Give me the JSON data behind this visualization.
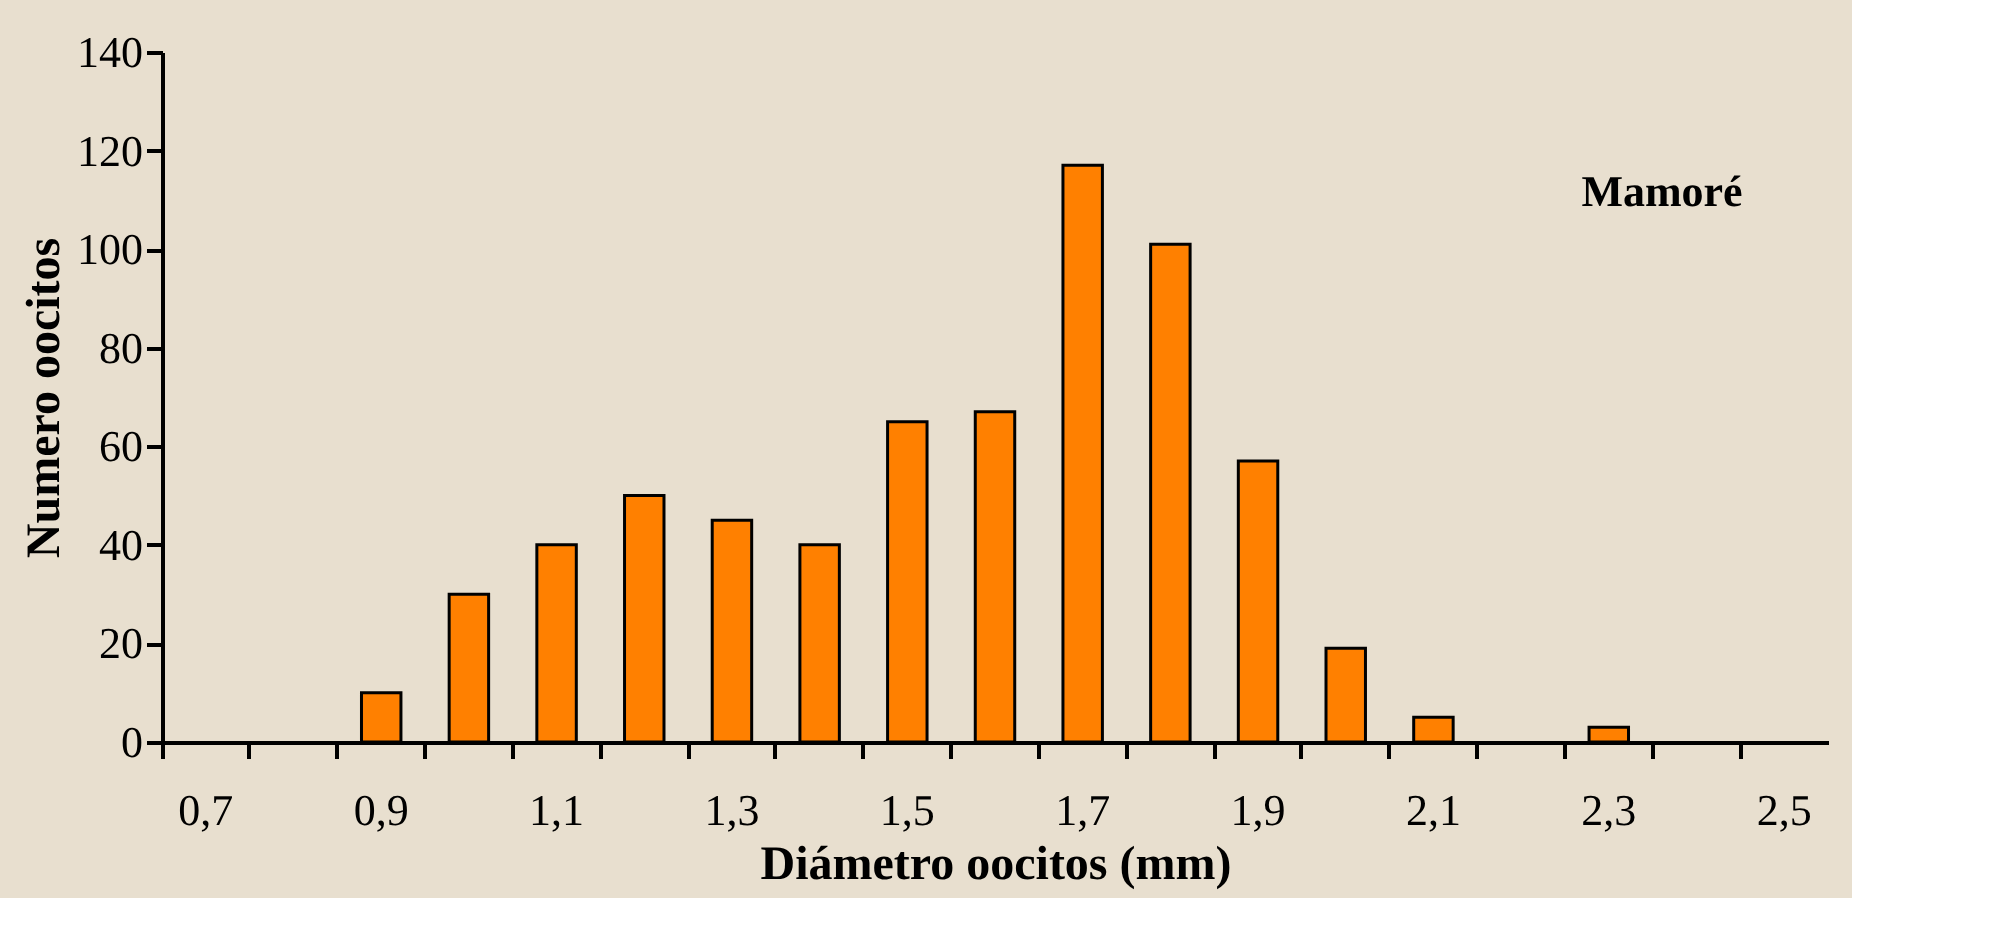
{
  "chart_data": {
    "type": "bar",
    "xlabel": "Diámetro oocitos (mm)",
    "ylabel": "Numero oocitos",
    "annotations": [
      "Mamoré"
    ],
    "categories": [
      "0,7",
      null,
      "0,9",
      null,
      "1,1",
      null,
      "1,3",
      null,
      "1,5",
      null,
      "1,7",
      null,
      "1,9",
      null,
      "2,1",
      null,
      "2,3",
      null,
      "2,5"
    ],
    "values": [
      null,
      null,
      10,
      30,
      40,
      50,
      45,
      40,
      65,
      67,
      117,
      101,
      57,
      19,
      5,
      null,
      3,
      null,
      null
    ],
    "color": "#ff8000",
    "ylim": [
      0,
      140
    ],
    "yticks": [
      0,
      20,
      40,
      60,
      80,
      100,
      120,
      140
    ],
    "grid": false
  }
}
